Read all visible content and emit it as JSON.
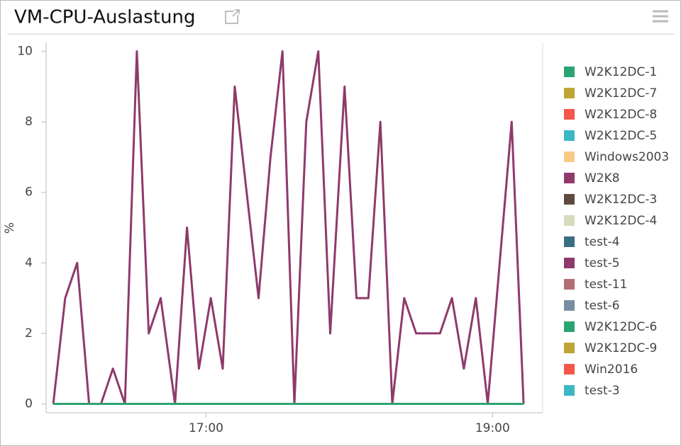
{
  "chart_data": {
    "type": "line",
    "title": "VM-CPU-Auslastung",
    "y_label": "%",
    "x": [
      "15:56",
      "16:01",
      "16:06",
      "16:11",
      "16:16",
      "16:21",
      "16:26",
      "16:31",
      "16:36",
      "16:41",
      "16:47",
      "16:52",
      "16:57",
      "17:02",
      "17:07",
      "17:12",
      "17:17",
      "17:22",
      "17:27",
      "17:32",
      "17:37",
      "17:42",
      "17:47",
      "17:52",
      "17:58",
      "18:03",
      "18:08",
      "18:13",
      "18:18",
      "18:23",
      "18:28",
      "18:33",
      "18:38",
      "18:43",
      "18:48",
      "18:53",
      "18:58",
      "19:03",
      "19:08",
      "19:13"
    ],
    "xlim": [
      "15:53",
      "19:21"
    ],
    "xticks": [
      "17:00",
      "19:00"
    ],
    "ylim": [
      -0.25,
      10.25
    ],
    "yticks": [
      0,
      2,
      4,
      6,
      8,
      10
    ],
    "series": [
      {
        "name": "W2K12DC-1",
        "color": "#2ca471",
        "values": [
          0,
          0,
          0,
          0,
          0,
          0,
          0,
          0,
          0,
          0,
          0,
          0,
          0,
          0,
          0,
          0,
          0,
          0,
          0,
          0,
          0,
          0,
          0,
          0,
          0,
          0,
          0,
          0,
          0,
          0,
          0,
          0,
          0,
          0,
          0,
          0,
          0,
          0,
          0,
          0
        ]
      },
      {
        "name": "W2K12DC-7",
        "color": "#bea535",
        "values": [
          0,
          0,
          0,
          0,
          0,
          0,
          0,
          0,
          0,
          0,
          0,
          0,
          0,
          0,
          0,
          0,
          0,
          0,
          0,
          0,
          0,
          0,
          0,
          0,
          0,
          0,
          0,
          0,
          0,
          0,
          0,
          0,
          0,
          0,
          0,
          0,
          0,
          0,
          0,
          0
        ]
      },
      {
        "name": "W2K12DC-8",
        "color": "#f4574a",
        "values": [
          0,
          0,
          0,
          0,
          0,
          0,
          0,
          0,
          0,
          0,
          0,
          0,
          0,
          0,
          0,
          0,
          0,
          0,
          0,
          0,
          0,
          0,
          0,
          0,
          0,
          0,
          0,
          0,
          0,
          0,
          0,
          0,
          0,
          0,
          0,
          0,
          0,
          0,
          0,
          0
        ]
      },
      {
        "name": "W2K12DC-5",
        "color": "#3bb7c4",
        "values": [
          0,
          0,
          0,
          0,
          0,
          0,
          0,
          0,
          0,
          0,
          0,
          0,
          0,
          0,
          0,
          0,
          0,
          0,
          0,
          0,
          0,
          0,
          0,
          0,
          0,
          0,
          0,
          0,
          0,
          0,
          0,
          0,
          0,
          0,
          0,
          0,
          0,
          0,
          0,
          0
        ]
      },
      {
        "name": "Windows2003",
        "color": "#f7cb85",
        "values": [
          0,
          0,
          0,
          0,
          0,
          0,
          0,
          0,
          0,
          0,
          0,
          0,
          0,
          0,
          0,
          0,
          0,
          0,
          0,
          0,
          0,
          0,
          0,
          0,
          0,
          0,
          0,
          0,
          0,
          0,
          0,
          0,
          0,
          0,
          0,
          0,
          0,
          0,
          0,
          0
        ]
      },
      {
        "name": "W2K8",
        "color": "#8e3a6b",
        "values": [
          0,
          3,
          4,
          0,
          0,
          1,
          0,
          10,
          2,
          3,
          0,
          5,
          1,
          3,
          1,
          9,
          6,
          3,
          7,
          10,
          0,
          8,
          10,
          2,
          9,
          3,
          3,
          8,
          0,
          3,
          2,
          2,
          2,
          3,
          1,
          3,
          0,
          4,
          8,
          0
        ]
      },
      {
        "name": "W2K12DC-3",
        "color": "#5e4a3e",
        "values": [
          0,
          0,
          0,
          0,
          0,
          0,
          0,
          0,
          0,
          0,
          0,
          0,
          0,
          0,
          0,
          0,
          0,
          0,
          0,
          0,
          0,
          0,
          0,
          0,
          0,
          0,
          0,
          0,
          0,
          0,
          0,
          0,
          0,
          0,
          0,
          0,
          0,
          0,
          0,
          0
        ]
      },
      {
        "name": "W2K12DC-4",
        "color": "#d6dbbc",
        "values": [
          0,
          0,
          0,
          0,
          0,
          0,
          0,
          0,
          0,
          0,
          0,
          0,
          0,
          0,
          0,
          0,
          0,
          0,
          0,
          0,
          0,
          0,
          0,
          0,
          0,
          0,
          0,
          0,
          0,
          0,
          0,
          0,
          0,
          0,
          0,
          0,
          0,
          0,
          0,
          0
        ]
      },
      {
        "name": "test-4",
        "color": "#3a6e85",
        "values": [
          0,
          0,
          0,
          0,
          0,
          0,
          0,
          0,
          0,
          0,
          0,
          0,
          0,
          0,
          0,
          0,
          0,
          0,
          0,
          0,
          0,
          0,
          0,
          0,
          0,
          0,
          0,
          0,
          0,
          0,
          0,
          0,
          0,
          0,
          0,
          0,
          0,
          0,
          0,
          0
        ]
      },
      {
        "name": "test-5",
        "color": "#8e3a6b",
        "values": [
          0,
          0,
          0,
          0,
          0,
          0,
          0,
          0,
          0,
          0,
          0,
          0,
          0,
          0,
          0,
          0,
          0,
          0,
          0,
          0,
          0,
          0,
          0,
          0,
          0,
          0,
          0,
          0,
          0,
          0,
          0,
          0,
          0,
          0,
          0,
          0,
          0,
          0,
          0,
          0
        ]
      },
      {
        "name": "test-11",
        "color": "#b26e74",
        "values": [
          0,
          0,
          0,
          0,
          0,
          0,
          0,
          0,
          0,
          0,
          0,
          0,
          0,
          0,
          0,
          0,
          0,
          0,
          0,
          0,
          0,
          0,
          0,
          0,
          0,
          0,
          0,
          0,
          0,
          0,
          0,
          0,
          0,
          0,
          0,
          0,
          0,
          0,
          0,
          0
        ]
      },
      {
        "name": "test-6",
        "color": "#7a8ea3",
        "values": [
          0,
          0,
          0,
          0,
          0,
          0,
          0,
          0,
          0,
          0,
          0,
          0,
          0,
          0,
          0,
          0,
          0,
          0,
          0,
          0,
          0,
          0,
          0,
          0,
          0,
          0,
          0,
          0,
          0,
          0,
          0,
          0,
          0,
          0,
          0,
          0,
          0,
          0,
          0,
          0
        ]
      },
      {
        "name": "W2K12DC-6",
        "color": "#2ca471",
        "values": [
          0,
          0,
          0,
          0,
          0,
          0,
          0,
          0,
          0,
          0,
          0,
          0,
          0,
          0,
          0,
          0,
          0,
          0,
          0,
          0,
          0,
          0,
          0,
          0,
          0,
          0,
          0,
          0,
          0,
          0,
          0,
          0,
          0,
          0,
          0,
          0,
          0,
          0,
          0,
          0
        ]
      },
      {
        "name": "W2K12DC-9",
        "color": "#bea535",
        "values": [
          0,
          0,
          0,
          0,
          0,
          0,
          0,
          0,
          0,
          0,
          0,
          0,
          0,
          0,
          0,
          0,
          0,
          0,
          0,
          0,
          0,
          0,
          0,
          0,
          0,
          0,
          0,
          0,
          0,
          0,
          0,
          0,
          0,
          0,
          0,
          0,
          0,
          0,
          0,
          0
        ]
      },
      {
        "name": "Win2016",
        "color": "#f4574a",
        "values": [
          0,
          0,
          0,
          0,
          0,
          0,
          0,
          0,
          0,
          0,
          0,
          0,
          0,
          0,
          0,
          0,
          0,
          0,
          0,
          0,
          0,
          0,
          0,
          0,
          0,
          0,
          0,
          0,
          0,
          0,
          0,
          0,
          0,
          0,
          0,
          0,
          0,
          0,
          0,
          0
        ]
      },
      {
        "name": "test-3",
        "color": "#3bb7c4",
        "values": [
          0,
          0,
          0,
          0,
          0,
          0,
          0,
          0,
          0,
          0,
          0,
          0,
          0,
          0,
          0,
          0,
          0,
          0,
          0,
          0,
          0,
          0,
          0,
          0,
          0,
          0,
          0,
          0,
          0,
          0,
          0,
          0,
          0,
          0,
          0,
          0,
          0,
          0,
          0,
          0
        ]
      }
    ]
  }
}
